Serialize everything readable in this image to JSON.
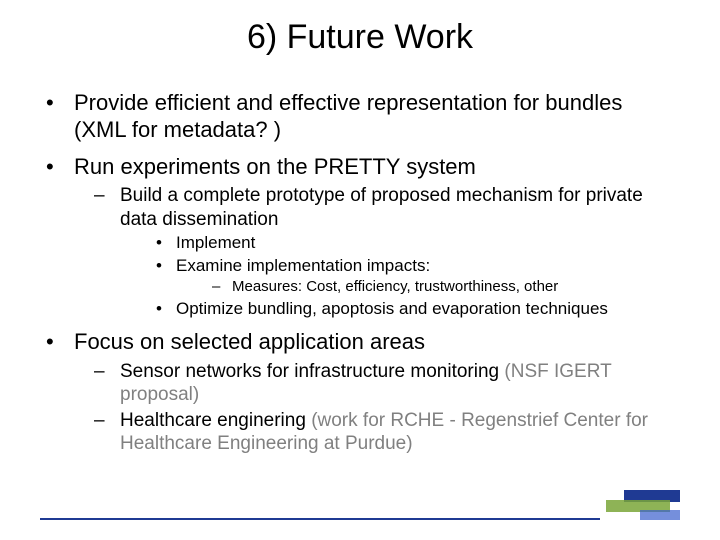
{
  "title": "6) Future Work",
  "colors": {
    "text": "#000000",
    "muted": "#808080",
    "accent_blue": "#1f3a93",
    "accent_green": "#7aa638",
    "background": "#ffffff"
  },
  "typography": {
    "title_fontsize_pt": 26,
    "body_fontsize_pt": 17,
    "lvl2_fontsize_pt": 14,
    "lvl3_fontsize_pt": 13,
    "lvl4_fontsize_pt": 11,
    "font_family": "Arial"
  },
  "bullets": {
    "b1": "Provide efficient and effective representation for bundles (XML for metadata? )",
    "b2": "Run experiments on the PRETTY system",
    "b2_1": "Build a complete prototype of proposed mechanism for private data dissemination",
    "b2_1_a": "Implement",
    "b2_1_b": "Examine implementation impacts:",
    "b2_1_b_i": "Measures: Cost, efficiency, trustworthiness, other",
    "b2_1_c": "Optimize bundling, apoptosis and evaporation techniques",
    "b3": "Focus on selected application areas",
    "b3_1_pre": "Sensor networks for infrastructure monitoring ",
    "b3_1_gray": "(NSF IGERT proposal)",
    "b3_2_pre": "Healthcare enginering ",
    "b3_2_gray": "(work for RCHE - Regenstrief Center for Healthcare Engineering at Purdue)"
  }
}
